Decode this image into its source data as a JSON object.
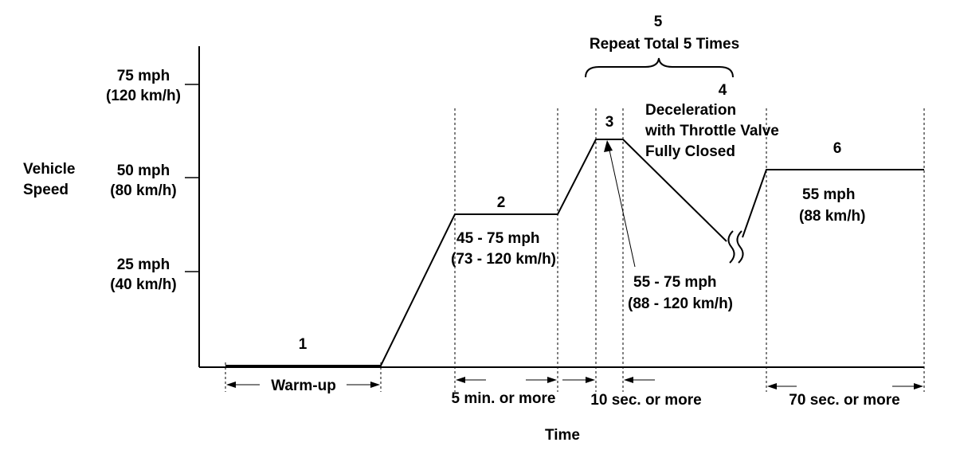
{
  "axes": {
    "y_title_line1": "Vehicle",
    "y_title_line2": "Speed",
    "x_title": "Time",
    "y_ticks": [
      {
        "line1": "75 mph",
        "line2": "(120 km/h)"
      },
      {
        "line1": "50 mph",
        "line2": "(80 km/h)"
      },
      {
        "line1": "25 mph",
        "line2": "(40 km/h)"
      }
    ]
  },
  "steps": {
    "step1": "1",
    "step2": "2",
    "step3": "3",
    "step4": "4",
    "step5": "5",
    "step6": "6"
  },
  "repeat_label": "Repeat Total 5 Times",
  "deceleration": {
    "line1": "Deceleration",
    "line2": "with Throttle Valve",
    "line3": "Fully Closed"
  },
  "speeds": {
    "step2_line1": "45 - 75 mph",
    "step2_line2": "(73 - 120 km/h)",
    "step3_line1": "55 - 75 mph",
    "step3_line2": "(88 - 120 km/h)",
    "step6_line1": "55 mph",
    "step6_line2": "(88 km/h)"
  },
  "durations": {
    "warmup": "Warm-up",
    "step2": "5 min. or more",
    "step3": "10 sec. or more",
    "step6": "70 sec. or more"
  }
}
